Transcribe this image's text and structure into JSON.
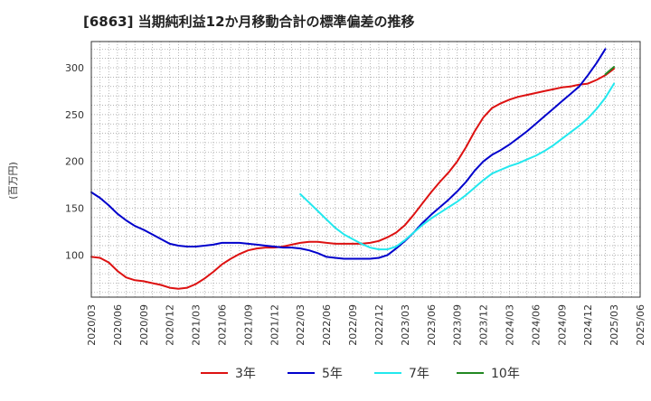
{
  "chart_data": {
    "type": "line",
    "title": "[6863]  当期純利益12か月移動合計の標準偏差の推移",
    "ylabel": "(百万円)",
    "xlabel": "",
    "ylim": [
      55,
      328
    ],
    "yticks": [
      100,
      150,
      200,
      250,
      300
    ],
    "xticks": [
      "2020/03",
      "2020/06",
      "2020/09",
      "2020/12",
      "2021/03",
      "2021/06",
      "2021/09",
      "2021/12",
      "2022/03",
      "2022/06",
      "2022/09",
      "2022/12",
      "2023/03",
      "2023/06",
      "2023/09",
      "2023/12",
      "2024/03",
      "2024/06",
      "2024/09",
      "2024/12",
      "2025/03",
      "2025/06"
    ],
    "grid": true,
    "legend_position": "bottom",
    "series": [
      {
        "name": "3年",
        "color": "#dd1111",
        "x": [
          "2020/03",
          "2020/04",
          "2020/05",
          "2020/06",
          "2020/07",
          "2020/08",
          "2020/09",
          "2020/10",
          "2020/11",
          "2020/12",
          "2021/01",
          "2021/02",
          "2021/03",
          "2021/04",
          "2021/05",
          "2021/06",
          "2021/07",
          "2021/08",
          "2021/09",
          "2021/10",
          "2021/11",
          "2021/12",
          "2022/01",
          "2022/02",
          "2022/03",
          "2022/04",
          "2022/05",
          "2022/06",
          "2022/07",
          "2022/08",
          "2022/09",
          "2022/10",
          "2022/11",
          "2022/12",
          "2023/01",
          "2023/02",
          "2023/03",
          "2023/04",
          "2023/05",
          "2023/06",
          "2023/07",
          "2023/08",
          "2023/09",
          "2023/10",
          "2023/11",
          "2023/12",
          "2024/01",
          "2024/02",
          "2024/03",
          "2024/04",
          "2024/05",
          "2024/06",
          "2024/07",
          "2024/08",
          "2024/09",
          "2024/10",
          "2024/11",
          "2024/12",
          "2025/01",
          "2025/02",
          "2025/03"
        ],
        "values": [
          98,
          97,
          92,
          83,
          76,
          73,
          72,
          70,
          68,
          65,
          64,
          65,
          69,
          75,
          82,
          90,
          96,
          101,
          105,
          107,
          108,
          108,
          109,
          111,
          113,
          114,
          114,
          113,
          112,
          112,
          112,
          112,
          113,
          115,
          119,
          124,
          132,
          143,
          155,
          167,
          178,
          188,
          200,
          215,
          232,
          247,
          257,
          262,
          266,
          269,
          271,
          273,
          275,
          277,
          279,
          280,
          282,
          283,
          287,
          292,
          299
        ]
      },
      {
        "name": "5年",
        "color": "#0000cc",
        "x": [
          "2020/03",
          "2020/04",
          "2020/05",
          "2020/06",
          "2020/07",
          "2020/08",
          "2020/09",
          "2020/10",
          "2020/11",
          "2020/12",
          "2021/01",
          "2021/02",
          "2021/03",
          "2021/04",
          "2021/05",
          "2021/06",
          "2021/07",
          "2021/08",
          "2021/09",
          "2021/10",
          "2021/11",
          "2021/12",
          "2022/01",
          "2022/02",
          "2022/03",
          "2022/04",
          "2022/05",
          "2022/06",
          "2022/07",
          "2022/08",
          "2022/09",
          "2022/10",
          "2022/11",
          "2022/12",
          "2023/01",
          "2023/02",
          "2023/03",
          "2023/04",
          "2023/05",
          "2023/06",
          "2023/07",
          "2023/08",
          "2023/09",
          "2023/10",
          "2023/11",
          "2023/12",
          "2024/01",
          "2024/02",
          "2024/03",
          "2024/04",
          "2024/05",
          "2024/06",
          "2024/07",
          "2024/08",
          "2024/09",
          "2024/10",
          "2024/11",
          "2024/12",
          "2025/01",
          "2025/02",
          "2025/03"
        ],
        "values": [
          167,
          161,
          153,
          144,
          137,
          131,
          127,
          122,
          117,
          112,
          110,
          109,
          109,
          110,
          111,
          113,
          113,
          113,
          112,
          111,
          110,
          109,
          108,
          108,
          107,
          105,
          102,
          98,
          97,
          96,
          96,
          96,
          96,
          97,
          100,
          107,
          115,
          124,
          134,
          143,
          151,
          159,
          168,
          178,
          190,
          200,
          207,
          212,
          218,
          225,
          232,
          240,
          248,
          256,
          264,
          272,
          280,
          292,
          305,
          320,
          null
        ]
      },
      {
        "name": "7年",
        "color": "#22e8ee",
        "x": [
          "2022/03",
          "2022/04",
          "2022/05",
          "2022/06",
          "2022/07",
          "2022/08",
          "2022/09",
          "2022/10",
          "2022/11",
          "2022/12",
          "2023/01",
          "2023/02",
          "2023/03",
          "2023/04",
          "2023/05",
          "2023/06",
          "2023/07",
          "2023/08",
          "2023/09",
          "2023/10",
          "2023/11",
          "2023/12",
          "2024/01",
          "2024/02",
          "2024/03",
          "2024/04",
          "2024/05",
          "2024/06",
          "2024/07",
          "2024/08",
          "2024/09",
          "2024/10",
          "2024/11",
          "2024/12",
          "2025/01",
          "2025/02",
          "2025/03"
        ],
        "values": [
          165,
          156,
          147,
          138,
          129,
          122,
          117,
          112,
          108,
          106,
          106,
          109,
          116,
          124,
          132,
          139,
          145,
          151,
          157,
          164,
          172,
          180,
          187,
          191,
          195,
          198,
          202,
          206,
          211,
          217,
          224,
          231,
          238,
          246,
          256,
          268,
          283
        ]
      },
      {
        "name": "10年",
        "color": "#228822",
        "x": [
          "2025/02",
          "2025/03"
        ],
        "values": [
          293,
          301
        ]
      }
    ]
  }
}
